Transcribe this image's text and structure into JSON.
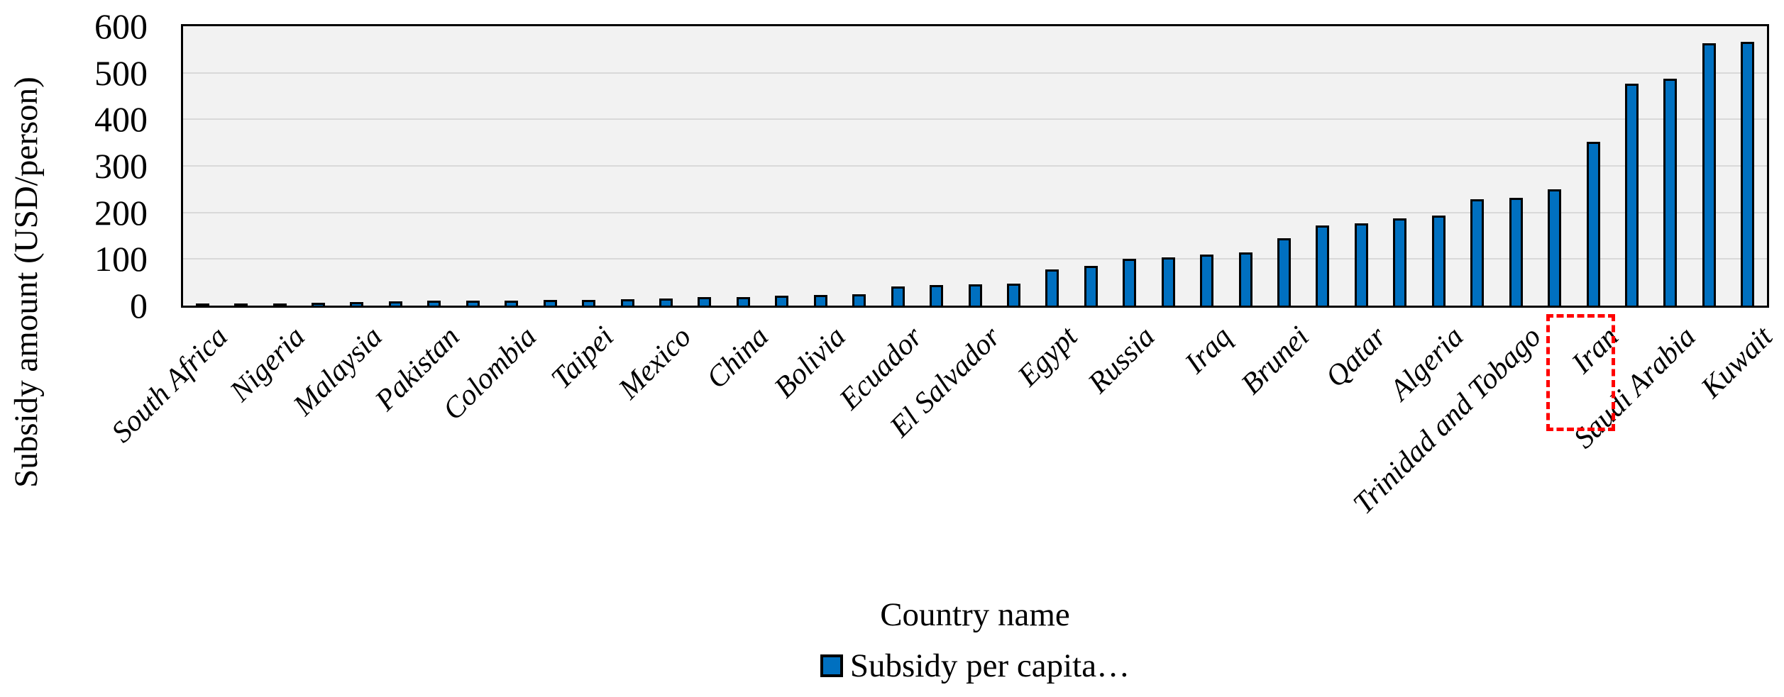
{
  "chart_data": {
    "type": "bar",
    "title": "",
    "xlabel": "Country name",
    "ylabel": "Subsidy amount (USD/person)",
    "ylim": [
      0,
      600
    ],
    "yticks": [
      0,
      100,
      200,
      300,
      400,
      500,
      600
    ],
    "grid": "horizontal",
    "legend": {
      "label": "Subsidy per capita…",
      "position": "bottom-center"
    },
    "note": "41 bars sorted ascending; axis labels shown on every other bar",
    "highlighted_category": "Iran",
    "bars": [
      {
        "label": "South Africa",
        "value": 1
      },
      {
        "label": "",
        "value": 4
      },
      {
        "label": "Nigeria",
        "value": 5
      },
      {
        "label": "",
        "value": 6
      },
      {
        "label": "Malaysia",
        "value": 7
      },
      {
        "label": "",
        "value": 9
      },
      {
        "label": "Pakistan",
        "value": 10
      },
      {
        "label": "",
        "value": 10
      },
      {
        "label": "Colombia",
        "value": 11
      },
      {
        "label": "",
        "value": 12
      },
      {
        "label": "Taipei",
        "value": 12
      },
      {
        "label": "",
        "value": 14
      },
      {
        "label": "Mexico",
        "value": 16
      },
      {
        "label": "",
        "value": 18
      },
      {
        "label": "China",
        "value": 19
      },
      {
        "label": "",
        "value": 21
      },
      {
        "label": "Bolivia",
        "value": 23
      },
      {
        "label": "",
        "value": 25
      },
      {
        "label": "Ecuador",
        "value": 41
      },
      {
        "label": "",
        "value": 44
      },
      {
        "label": "El Salvador",
        "value": 45
      },
      {
        "label": "",
        "value": 47
      },
      {
        "label": "Egypt",
        "value": 77
      },
      {
        "label": "",
        "value": 85
      },
      {
        "label": "Russia",
        "value": 100
      },
      {
        "label": "",
        "value": 103
      },
      {
        "label": "Iraq",
        "value": 110
      },
      {
        "label": "",
        "value": 114
      },
      {
        "label": "Brunei",
        "value": 144
      },
      {
        "label": "",
        "value": 172
      },
      {
        "label": "Qatar",
        "value": 176
      },
      {
        "label": "",
        "value": 188
      },
      {
        "label": "Algeria",
        "value": 193
      },
      {
        "label": "",
        "value": 228
      },
      {
        "label": "Trinidad and Tobago",
        "value": 231
      },
      {
        "label": "",
        "value": 250
      },
      {
        "label": "Iran",
        "value": 352
      },
      {
        "label": "",
        "value": 477
      },
      {
        "label": "Saudi Arabia",
        "value": 487
      },
      {
        "label": "",
        "value": 564
      },
      {
        "label": "Kuwait",
        "value": 566
      }
    ]
  },
  "colors": {
    "bar_fill": "#0070C0",
    "bar_border": "#000000",
    "plot_background": "#F2F2F2",
    "gridline": "#D9D9D9",
    "axis_border": "#000000",
    "highlight_box": "#FF0000",
    "text": "#000000"
  }
}
